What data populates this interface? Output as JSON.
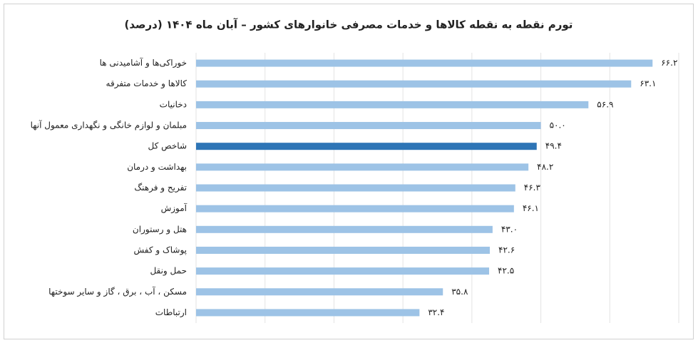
{
  "chart_data": {
    "type": "hbar",
    "title": "تورم نقطه به نقطه کالاها و خدمات مصرفی خانوارهای کشور – آبان ماه ۱۴۰۴ (درصد)",
    "categories": [
      "خوراکی‌ها و آشامیدنی ها",
      "کالاها و خدمات متفرقه",
      "دخانیات",
      "مبلمان و لوازم خانگی و نگهداری معمول آنها",
      "شاخص کل",
      "بهداشت و درمان",
      "تفریح و فرهنگ",
      "آموزش",
      "هتل و رستوران",
      "پوشاک و کفش",
      "حمل ونقل",
      "مسکن ، آب ، برق ، گاز و سایر سوختها",
      "ارتباطات"
    ],
    "values": [
      66.2,
      63.1,
      56.9,
      50.0,
      49.4,
      48.2,
      46.3,
      46.1,
      43.0,
      42.6,
      42.5,
      35.8,
      32.4
    ],
    "value_labels": [
      "۶۶.۲",
      "۶۳.۱",
      "۵۶.۹",
      "۵۰.۰",
      "۴۹.۴",
      "۴۸.۲",
      "۴۶.۳",
      "۴۶.۱",
      "۴۳.۰",
      "۴۲.۶",
      "۴۲.۵",
      "۳۵.۸",
      "۳۲.۴"
    ],
    "colors": [
      "#9dc3e6",
      "#9dc3e6",
      "#9dc3e6",
      "#9dc3e6",
      "#2e75b6",
      "#9dc3e6",
      "#9dc3e6",
      "#9dc3e6",
      "#9dc3e6",
      "#9dc3e6",
      "#9dc3e6",
      "#9dc3e6",
      "#9dc3e6"
    ],
    "xlim": [
      0,
      70
    ],
    "xticks": [
      0,
      10,
      20,
      30,
      40,
      50,
      60,
      70
    ],
    "grid": true
  }
}
